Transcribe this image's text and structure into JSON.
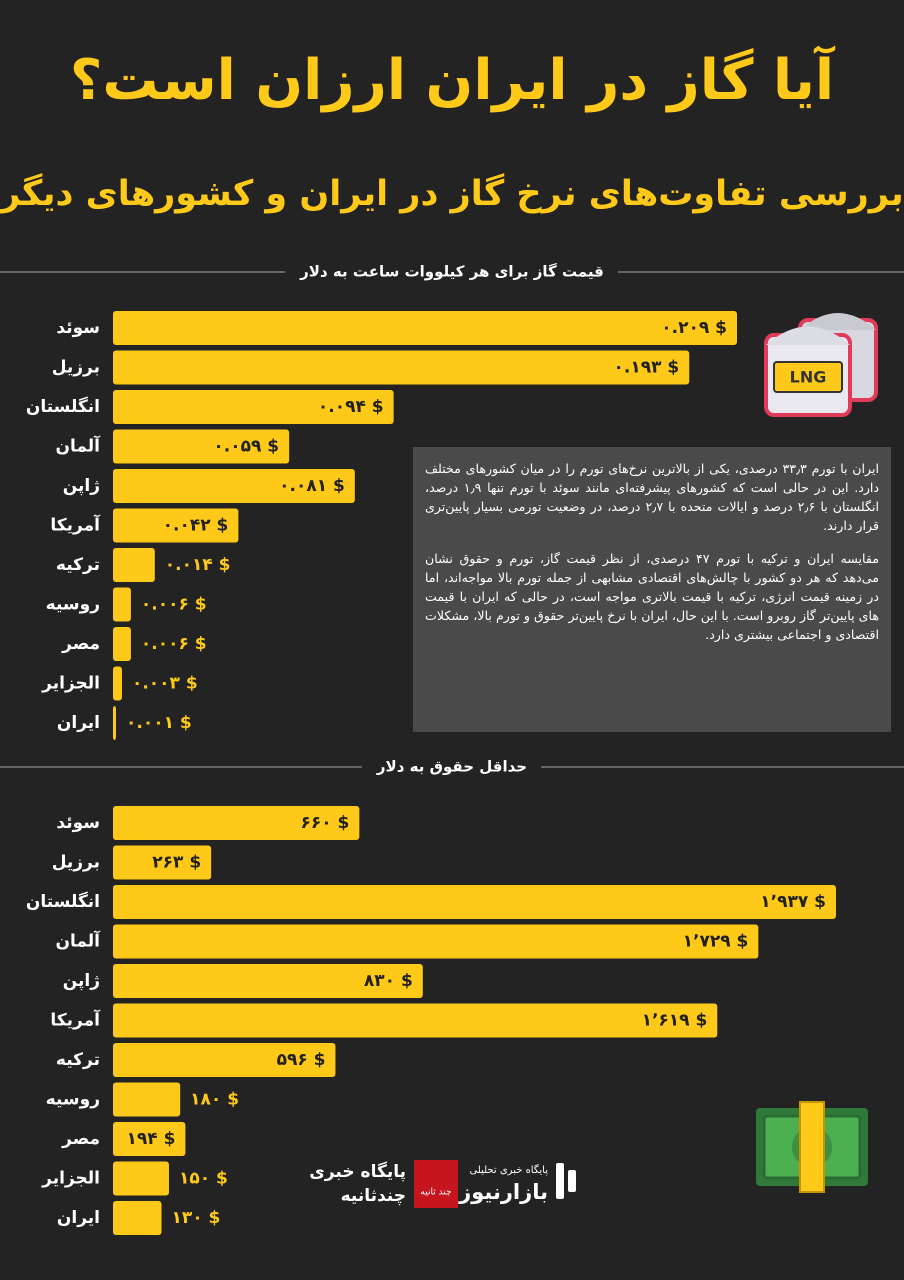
{
  "header": {
    "title": "آیا گاز در ایران ارزان است؟",
    "subtitle": "بررسی تفاوت‌های نرخ گاز در ایران و کشورهای دیگر"
  },
  "chart_data": [
    {
      "type": "bar",
      "orientation": "horizontal",
      "title": "قیمت گاز برای هر کیلووات ساعت به دلار",
      "color": "#ffc91a",
      "categories": [
        "سوئد",
        "برزیل",
        "انگلستان",
        "آلمان",
        "ژاپن",
        "آمریکا",
        "ترکیه",
        "روسیه",
        "مصر",
        "الجزایر",
        "ایران"
      ],
      "values": [
        0.209,
        0.193,
        0.094,
        0.059,
        0.081,
        0.042,
        0.014,
        0.006,
        0.006,
        0.003,
        0.001
      ],
      "value_labels": [
        "۰.۲۰۹ $",
        "۰.۱۹۳ $",
        "۰.۰۹۴ $",
        "۰.۰۵۹ $",
        "۰.۰۸۱ $",
        "۰.۰۴۲ $",
        "۰.۰۱۴ $",
        "۰.۰۰۶ $",
        "۰.۰۰۶ $",
        "۰.۰۰۳ $",
        "۰.۰۰۱ $"
      ]
    },
    {
      "type": "bar",
      "orientation": "horizontal",
      "title": "حداقل حقوق به دلار",
      "color": "#ffc91a",
      "categories": [
        "سوئد",
        "برزیل",
        "انگلستان",
        "آلمان",
        "ژاپن",
        "آمریکا",
        "ترکیه",
        "روسیه",
        "مصر",
        "الجزایر",
        "ایران"
      ],
      "values": [
        660,
        263,
        1937,
        1729,
        830,
        1619,
        596,
        180,
        194,
        150,
        130
      ],
      "value_labels": [
        "۶۶۰ $",
        "۲۶۳ $",
        "۱٬۹۳۷ $",
        "۱٬۷۲۹ $",
        "۸۳۰ $",
        "۱٬۶۱۹ $",
        "۵۹۶ $",
        "۱۸۰ $",
        "۱۹۴ $",
        "۱۵۰ $",
        "۱۳۰ $"
      ]
    }
  ],
  "note": {
    "paragraphs": [
      "ایران با تورم ۳۳٫۳ درصدی، یکی از بالاترین نرخ‌های تورم را در میان کشورهای مختلف دارد. این در حالی است که کشورهای پیشرفته‌ای مانند سوئد با تورم تنها ۱٫۹ درصد، انگلستان با ۲٫۶ درصد و ایالات متحده با ۲٫۷ درصد، در وضعیت تورمی بسیار پایین‌تری قرار دارند.",
      "مقایسه ایران و ترکیه با تورم ۴۷ درصدی، از نظر قیمت گاز، تورم و حقوق نشان می‌دهد که هر دو کشور با چالش‌های اقتصادی مشابهی از جمله تورم بالا مواجه‌اند، اما در زمینه قیمت انرژی، ترکیه با قیمت بالاتری مواجه است، در حالی که ایران با قیمت های پایین‌تر گاز روبرو است. با این حال، ایران با نرخ پایین‌تر حقوق و تورم بالا، مشکلات اقتصادی و اجتماعی بیشتری دارد."
    ]
  },
  "icon": {
    "label": "LNG"
  },
  "logos": {
    "left": {
      "line1": "پایگاه خبری",
      "line2": "چندثانیه",
      "badge": "چند ثانیه"
    },
    "right": {
      "tagline": "پایگاه خبری تحلیلی",
      "name": "بازارنیوز"
    }
  }
}
